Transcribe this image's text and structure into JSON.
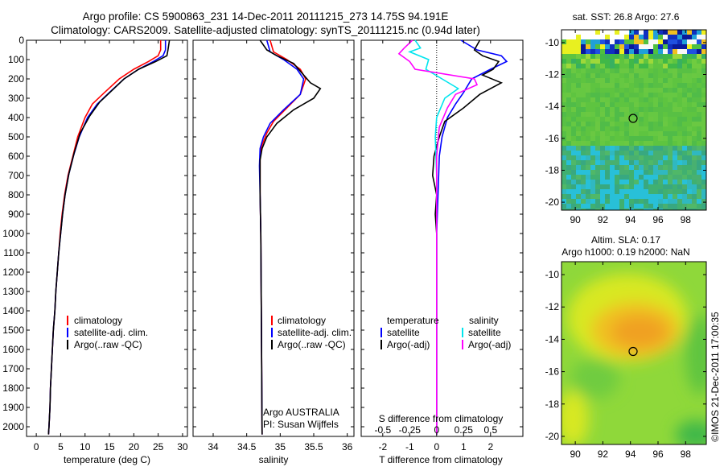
{
  "header": {
    "title_line1": "Argo profile: CS 5900863_231 14-Dec-2011 20111215_273 14.75S 94.191E",
    "title_line2": "Climatology: CARS2009. Satellite-adjusted climatology: synTS_20111215.nc (0.94d later)"
  },
  "footer": {
    "credit": "©IMOS 21-Dec-2011 17:00:35"
  },
  "colors": {
    "climatology": "#ff0000",
    "satellite": "#0000ff",
    "argo": "#000000",
    "sat_salinity": "#00e5ee",
    "argo_salinity": "#ff00ff"
  },
  "chart_data": [
    {
      "type": "line",
      "id": "temperature",
      "xlabel": "temperature (deg C)",
      "ylabel": "",
      "xlim": [
        -2,
        31
      ],
      "ylim": [
        2050,
        0
      ],
      "xticks": [
        0,
        5,
        10,
        15,
        20,
        25,
        30
      ],
      "yticks": [
        0,
        100,
        200,
        300,
        400,
        500,
        600,
        700,
        800,
        900,
        1000,
        1100,
        1200,
        1300,
        1400,
        1500,
        1600,
        1700,
        1800,
        1900,
        2000
      ],
      "legend": [
        "climatology",
        "satellite-adj. clim.",
        "Argo(..raw -QC)"
      ],
      "series": [
        {
          "name": "climatology",
          "color": "#ff0000",
          "points": [
            [
              25.5,
              0
            ],
            [
              25.5,
              50
            ],
            [
              25,
              80
            ],
            [
              23,
              110
            ],
            [
              20,
              150
            ],
            [
              17,
              200
            ],
            [
              14,
              270
            ],
            [
              11.5,
              330
            ],
            [
              10,
              400
            ],
            [
              8.5,
              500
            ],
            [
              7.5,
              600
            ],
            [
              6.5,
              700
            ],
            [
              5.8,
              800
            ],
            [
              5.3,
              900
            ],
            [
              4.9,
              1000
            ],
            [
              4.6,
              1100
            ],
            [
              4.3,
              1200
            ],
            [
              4.0,
              1300
            ],
            [
              3.8,
              1400
            ],
            [
              3.5,
              1500
            ],
            [
              3.3,
              1600
            ],
            [
              3.1,
              1700
            ],
            [
              2.9,
              1800
            ],
            [
              2.8,
              1900
            ],
            [
              2.6,
              2000
            ],
            [
              2.5,
              2040
            ]
          ]
        },
        {
          "name": "satellite-adj. clim.",
          "color": "#0000ff",
          "points": [
            [
              26.5,
              0
            ],
            [
              26.5,
              50
            ],
            [
              26,
              80
            ],
            [
              24,
              110
            ],
            [
              21,
              150
            ],
            [
              18,
              200
            ],
            [
              15,
              270
            ],
            [
              12.5,
              330
            ],
            [
              10.5,
              400
            ],
            [
              8.8,
              500
            ],
            [
              7.6,
              600
            ],
            [
              6.6,
              700
            ],
            [
              5.9,
              800
            ],
            [
              5.4,
              900
            ],
            [
              5.0,
              1000
            ],
            [
              4.6,
              1100
            ],
            [
              4.3,
              1200
            ],
            [
              4.0,
              1300
            ],
            [
              3.8,
              1400
            ],
            [
              3.5,
              1500
            ],
            [
              3.3,
              1600
            ],
            [
              3.1,
              1700
            ],
            [
              2.9,
              1800
            ],
            [
              2.8,
              1900
            ],
            [
              2.6,
              2000
            ],
            [
              2.5,
              2040
            ]
          ]
        },
        {
          "name": "Argo(..raw -QC)",
          "color": "#000000",
          "points": [
            [
              27.3,
              0
            ],
            [
              27,
              50
            ],
            [
              26.8,
              80
            ],
            [
              24.5,
              110
            ],
            [
              21,
              150
            ],
            [
              18,
              200
            ],
            [
              15.5,
              260
            ],
            [
              13,
              320
            ],
            [
              11,
              390
            ],
            [
              9,
              480
            ],
            [
              7.8,
              580
            ],
            [
              6.7,
              690
            ],
            [
              5.9,
              800
            ],
            [
              5.4,
              900
            ],
            [
              5.0,
              1000
            ],
            [
              4.6,
              1100
            ],
            [
              4.3,
              1200
            ],
            [
              4.0,
              1300
            ],
            [
              3.8,
              1400
            ],
            [
              3.5,
              1500
            ],
            [
              3.3,
              1600
            ],
            [
              3.1,
              1700
            ],
            [
              2.9,
              1800
            ],
            [
              2.8,
              1900
            ],
            [
              2.6,
              2000
            ],
            [
              2.5,
              2040
            ]
          ]
        }
      ]
    },
    {
      "type": "line",
      "id": "salinity",
      "xlabel": "salinity",
      "ylabel": "",
      "xlim": [
        33.7,
        36.1
      ],
      "ylim": [
        2050,
        0
      ],
      "xticks": [
        34,
        34.5,
        35,
        35.5,
        36
      ],
      "legend": [
        "climatology",
        "satellite-adj. clim.",
        "Argo(..raw -QC)"
      ],
      "annotation_line1": "Argo AUSTRALIA",
      "annotation_line2": "PI: Susan Wijffels",
      "series": [
        {
          "name": "climatology",
          "color": "#ff0000",
          "points": [
            [
              34.85,
              0
            ],
            [
              34.9,
              60
            ],
            [
              35.1,
              100
            ],
            [
              35.3,
              150
            ],
            [
              35.38,
              200
            ],
            [
              35.3,
              280
            ],
            [
              35.1,
              350
            ],
            [
              34.9,
              420
            ],
            [
              34.8,
              480
            ],
            [
              34.72,
              550
            ],
            [
              34.7,
              600
            ],
            [
              34.7,
              800
            ],
            [
              34.71,
              1000
            ],
            [
              34.72,
              1500
            ],
            [
              34.73,
              2040
            ]
          ]
        },
        {
          "name": "satellite-adj. clim.",
          "color": "#0000ff",
          "points": [
            [
              34.8,
              0
            ],
            [
              34.85,
              60
            ],
            [
              35.05,
              100
            ],
            [
              35.25,
              150
            ],
            [
              35.35,
              200
            ],
            [
              35.3,
              280
            ],
            [
              35.05,
              360
            ],
            [
              34.85,
              430
            ],
            [
              34.75,
              500
            ],
            [
              34.7,
              560
            ],
            [
              34.69,
              650
            ],
            [
              34.7,
              800
            ],
            [
              34.71,
              1000
            ],
            [
              34.72,
              1500
            ],
            [
              34.73,
              2040
            ]
          ]
        },
        {
          "name": "Argo(..raw -QC)",
          "color": "#000000",
          "points": [
            [
              34.7,
              0
            ],
            [
              34.8,
              50
            ],
            [
              34.95,
              80
            ],
            [
              35.2,
              120
            ],
            [
              35.35,
              180
            ],
            [
              35.45,
              220
            ],
            [
              35.6,
              250
            ],
            [
              35.5,
              300
            ],
            [
              35.2,
              360
            ],
            [
              34.95,
              430
            ],
            [
              34.8,
              500
            ],
            [
              34.73,
              560
            ],
            [
              34.7,
              620
            ],
            [
              34.7,
              800
            ],
            [
              34.71,
              1000
            ],
            [
              34.72,
              1500
            ],
            [
              34.73,
              2040
            ]
          ]
        }
      ]
    },
    {
      "type": "line",
      "id": "difference",
      "xlabel": "T difference from climatology",
      "xlabel_top": "S difference from climatology",
      "ylabel": "",
      "xlim": [
        -2.8,
        3.2
      ],
      "ylim": [
        2050,
        0
      ],
      "xticks": [
        -2,
        -1,
        0,
        1,
        2
      ],
      "xticks_s": [
        {
          "label": "-0.5",
          "pos": -2
        },
        {
          "label": "-0.25",
          "pos": -1
        },
        {
          "label": "0",
          "pos": 0
        },
        {
          "label": "0.25",
          "pos": 1
        },
        {
          "label": "0.5",
          "pos": 2
        }
      ],
      "legend_temperature_title": "temperature",
      "legend_salinity_title": "salinity",
      "legend": [
        {
          "label": "satellite",
          "color": "#0000ff"
        },
        {
          "label": "Argo(-adj)",
          "color": "#000000"
        },
        {
          "label": "satellite",
          "color": "#00e5ee"
        },
        {
          "label": "Argo(-adj)",
          "color": "#ff00ff"
        }
      ],
      "series": [
        {
          "name": "T satellite",
          "color": "#0000ff",
          "points": [
            [
              0.9,
              0
            ],
            [
              1.5,
              50
            ],
            [
              2.4,
              80
            ],
            [
              2.6,
              110
            ],
            [
              2,
              150
            ],
            [
              1.3,
              200
            ],
            [
              1,
              270
            ],
            [
              0.7,
              330
            ],
            [
              0.4,
              400
            ],
            [
              0.2,
              500
            ],
            [
              0.1,
              600
            ],
            [
              0.05,
              800
            ],
            [
              0,
              1000
            ],
            [
              0,
              2040
            ]
          ]
        },
        {
          "name": "T Argo(-adj)",
          "color": "#000000",
          "points": [
            [
              1.6,
              0
            ],
            [
              1.4,
              50
            ],
            [
              1.7,
              80
            ],
            [
              2.3,
              110
            ],
            [
              2.1,
              150
            ],
            [
              1.7,
              180
            ],
            [
              2.4,
              220
            ],
            [
              1.6,
              280
            ],
            [
              1.0,
              350
            ],
            [
              0.3,
              420
            ],
            [
              0.1,
              500
            ],
            [
              -0.1,
              600
            ],
            [
              -0.15,
              700
            ],
            [
              0,
              800
            ],
            [
              -0.05,
              900
            ],
            [
              0,
              1000
            ],
            [
              0,
              2040
            ]
          ]
        },
        {
          "name": "S satellite",
          "color": "#00e5ee",
          "points": [
            [
              -0.8,
              0
            ],
            [
              -0.6,
              40
            ],
            [
              -1.0,
              60
            ],
            [
              -0.3,
              100
            ],
            [
              -0.4,
              150
            ],
            [
              0.2,
              200
            ],
            [
              0.8,
              250
            ],
            [
              0.3,
              300
            ],
            [
              0,
              400
            ],
            [
              -0.05,
              500
            ],
            [
              0,
              700
            ],
            [
              0,
              1000
            ],
            [
              0,
              2040
            ]
          ]
        },
        {
          "name": "S Argo(-adj)",
          "color": "#ff00ff",
          "points": [
            [
              -0.9,
              0
            ],
            [
              -1.2,
              40
            ],
            [
              -1.4,
              70
            ],
            [
              -1.0,
              110
            ],
            [
              -0.8,
              150
            ],
            [
              1.4,
              200
            ],
            [
              1.5,
              230
            ],
            [
              0.7,
              280
            ],
            [
              0.4,
              350
            ],
            [
              0.1,
              450
            ],
            [
              0,
              600
            ],
            [
              0,
              1000
            ],
            [
              0,
              2040
            ]
          ]
        }
      ]
    },
    {
      "type": "heatmap",
      "id": "sst_map",
      "title": "sat. SST: 26.8 Argo: 27.6",
      "xlim": [
        89,
        99.5
      ],
      "ylim": [
        -20.5,
        -9.2
      ],
      "xticks": [
        90,
        92,
        94,
        96,
        98
      ],
      "yticks": [
        -10,
        -12,
        -14,
        -16,
        -18,
        -20
      ],
      "marker": {
        "lon": 94.191,
        "lat": -14.75
      }
    },
    {
      "type": "heatmap",
      "id": "sla_map",
      "title_line1": "Altim. SLA: 0.17",
      "title_line2": "Argo h1000: 0.19 h2000: NaN",
      "xlim": [
        89,
        99.5
      ],
      "ylim": [
        -20.5,
        -9.2
      ],
      "xticks": [
        90,
        92,
        94,
        96,
        98
      ],
      "yticks": [
        -10,
        -12,
        -14,
        -16,
        -18,
        -20
      ],
      "marker": {
        "lon": 94.191,
        "lat": -14.75
      }
    }
  ]
}
